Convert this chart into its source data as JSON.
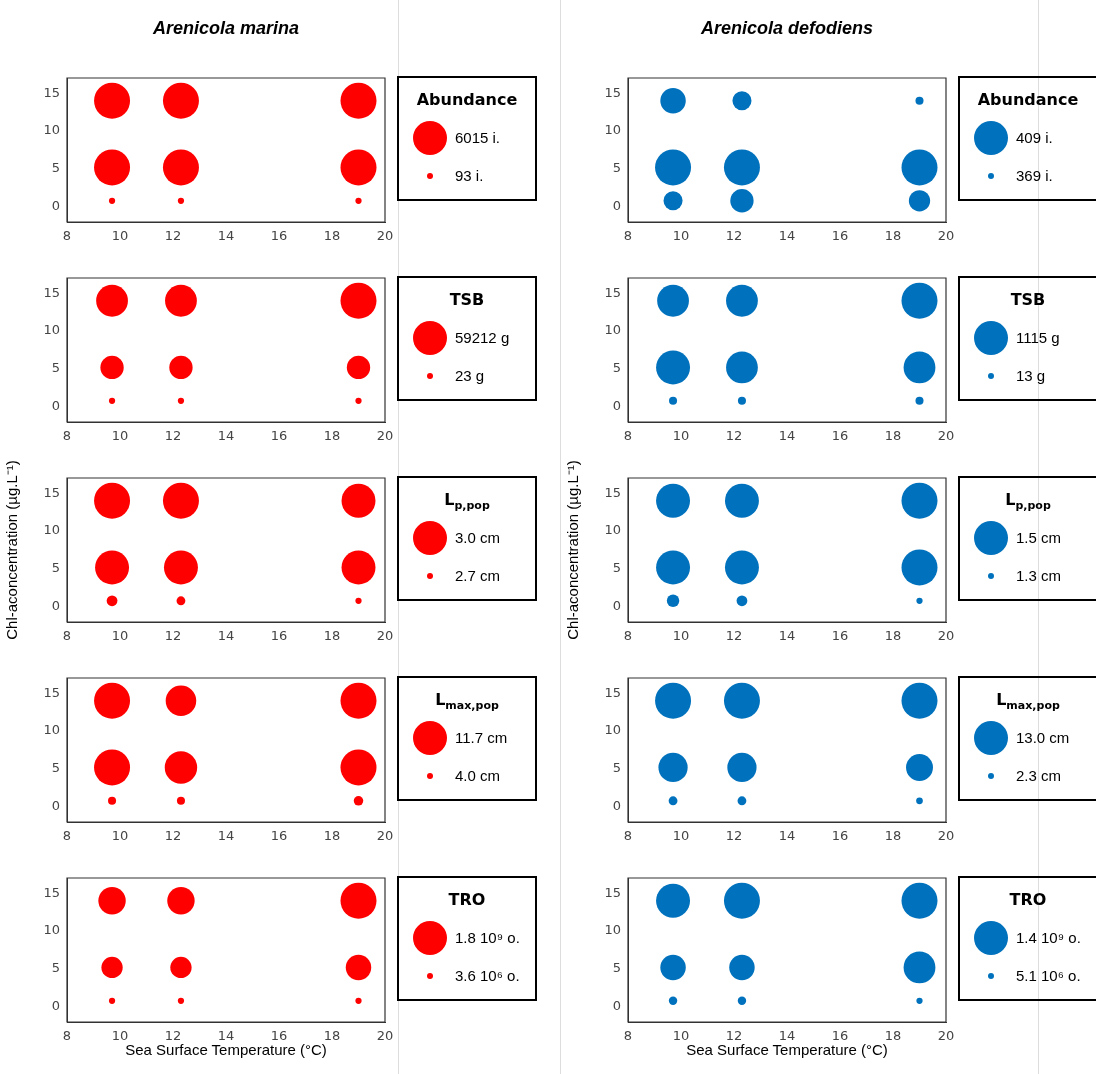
{
  "chart_data": [
    {
      "type": "bubble",
      "title": "Arenicola marina",
      "legend_title": "Abundance",
      "annotations": [
        "6015 i.",
        "93 i."
      ],
      "color": "#ff0000",
      "xlim": [
        8,
        20
      ],
      "ylim": [
        -2,
        17
      ],
      "xticks": [
        8,
        10,
        12,
        14,
        16,
        18,
        20
      ],
      "yticks": [
        0,
        5,
        10,
        15
      ],
      "x": [
        9.7,
        12.3,
        19,
        9.7,
        12.3,
        19,
        9.7,
        12.3,
        19
      ],
      "values": [
        14,
        14,
        14,
        5.2,
        5.2,
        5.2,
        0.8,
        0.8,
        0.8
      ],
      "sizes": [
        1,
        1,
        1,
        1,
        1,
        1,
        0.03,
        0.03,
        0.03
      ]
    },
    {
      "type": "bubble",
      "title": "Arenicola defodiens",
      "legend_title": "Abundance",
      "annotations": [
        "409 i.",
        "369 i."
      ],
      "color": "#0072bd",
      "xlim": [
        8,
        20
      ],
      "ylim": [
        -2,
        17
      ],
      "xticks": [
        8,
        10,
        12,
        14,
        16,
        18,
        20
      ],
      "yticks": [
        0,
        5,
        10,
        15
      ],
      "x": [
        9.7,
        12.3,
        19,
        9.7,
        12.3,
        19,
        9.7,
        12.3,
        19
      ],
      "values": [
        14,
        14,
        14,
        5.2,
        5.2,
        5.2,
        0.8,
        0.8,
        0.8
      ],
      "sizes": [
        0.5,
        0.28,
        0.05,
        1,
        1,
        1,
        0.28,
        0.42,
        0.35
      ]
    },
    {
      "type": "bubble",
      "legend_title": "TSB",
      "annotations": [
        "59212 g",
        "23 g"
      ],
      "color": "#ff0000",
      "xlim": [
        8,
        20
      ],
      "ylim": [
        -2,
        17
      ],
      "xticks": [
        8,
        10,
        12,
        14,
        16,
        18,
        20
      ],
      "yticks": [
        0,
        5,
        10,
        15
      ],
      "x": [
        9.7,
        12.3,
        19,
        9.7,
        12.3,
        19,
        9.7,
        12.3,
        19
      ],
      "values": [
        14,
        14,
        14,
        5.2,
        5.2,
        5.2,
        0.8,
        0.8,
        0.8
      ],
      "sizes": [
        0.78,
        0.78,
        1,
        0.42,
        0.42,
        0.42,
        0.03,
        0.03,
        0.03
      ]
    },
    {
      "type": "bubble",
      "legend_title": "TSB",
      "annotations": [
        "1115 g",
        "13 g"
      ],
      "color": "#0072bd",
      "xlim": [
        8,
        20
      ],
      "ylim": [
        -2,
        17
      ],
      "xticks": [
        8,
        10,
        12,
        14,
        16,
        18,
        20
      ],
      "yticks": [
        0,
        5,
        10,
        15
      ],
      "x": [
        9.7,
        12.3,
        19,
        9.7,
        12.3,
        19,
        9.7,
        12.3,
        19
      ],
      "values": [
        14,
        14,
        14,
        5.2,
        5.2,
        5.2,
        0.8,
        0.8,
        0.8
      ],
      "sizes": [
        0.78,
        0.78,
        1,
        0.89,
        0.78,
        0.78,
        0.05,
        0.05,
        0.05
      ]
    },
    {
      "type": "bubble",
      "ylabel": "Chl-aconcentration (µg.L⁻¹)",
      "legend_title": "L$_{p,pop}$",
      "annotations": [
        "3.0 cm",
        "2.7 cm"
      ],
      "color": "#ff0000",
      "xlim": [
        8,
        20
      ],
      "ylim": [
        -2,
        17
      ],
      "xticks": [
        8,
        10,
        12,
        14,
        16,
        18,
        20
      ],
      "yticks": [
        0,
        5,
        10,
        15
      ],
      "x": [
        9.7,
        12.3,
        19,
        9.7,
        12.3,
        19,
        9.7,
        12.3,
        19
      ],
      "values": [
        14,
        14,
        14,
        5.2,
        5.2,
        5.2,
        0.8,
        0.8,
        0.8
      ],
      "sizes": [
        1,
        1,
        0.89,
        0.89,
        0.89,
        0.89,
        0.09,
        0.06,
        0.03
      ]
    },
    {
      "type": "bubble",
      "ylabel": "Chl-aconcentration (µg.L⁻¹)",
      "legend_title": "L$_{p,pop}$",
      "annotations": [
        "1.5 cm",
        "1.3 cm"
      ],
      "color": "#0072bd",
      "xlim": [
        8,
        20
      ],
      "ylim": [
        -2,
        17
      ],
      "xticks": [
        8,
        10,
        12,
        14,
        16,
        18,
        20
      ],
      "yticks": [
        0,
        5,
        10,
        15
      ],
      "x": [
        9.7,
        12.3,
        19,
        9.7,
        12.3,
        19,
        9.7,
        12.3,
        19
      ],
      "values": [
        14,
        14,
        14,
        5.2,
        5.2,
        5.2,
        0.8,
        0.8,
        0.8
      ],
      "sizes": [
        0.89,
        0.89,
        1,
        0.89,
        0.89,
        1,
        0.12,
        0.09,
        0.03
      ]
    },
    {
      "type": "bubble",
      "legend_title": "L$_{max,pop}$",
      "annotations": [
        "11.7 cm",
        "4.0 cm"
      ],
      "color": "#ff0000",
      "xlim": [
        8,
        20
      ],
      "ylim": [
        -2,
        17
      ],
      "xticks": [
        8,
        10,
        12,
        14,
        16,
        18,
        20
      ],
      "yticks": [
        0,
        5,
        10,
        15
      ],
      "x": [
        9.7,
        12.3,
        19,
        9.7,
        12.3,
        19,
        9.7,
        12.3,
        19
      ],
      "values": [
        14,
        14,
        14,
        5.2,
        5.2,
        5.2,
        0.8,
        0.8,
        0.8
      ],
      "sizes": [
        1,
        0.72,
        1,
        1,
        0.81,
        1,
        0.05,
        0.05,
        0.07
      ]
    },
    {
      "type": "bubble",
      "legend_title": "L$_{max,pop}$",
      "annotations": [
        "13.0 cm",
        "2.3 cm"
      ],
      "color": "#0072bd",
      "xlim": [
        8,
        20
      ],
      "ylim": [
        -2,
        17
      ],
      "xticks": [
        8,
        10,
        12,
        14,
        16,
        18,
        20
      ],
      "yticks": [
        0,
        5,
        10,
        15
      ],
      "x": [
        9.7,
        12.3,
        19,
        9.7,
        12.3,
        19,
        9.7,
        12.3,
        19
      ],
      "values": [
        14,
        14,
        14,
        5.2,
        5.2,
        5.2,
        0.8,
        0.8,
        0.8
      ],
      "sizes": [
        1,
        1,
        1,
        0.66,
        0.66,
        0.56,
        0.06,
        0.06,
        0.035
      ]
    },
    {
      "type": "bubble",
      "xlabel": "Sea Surface Temperature (°C)",
      "legend_title": "TRO",
      "annotations": [
        "1.8 10⁹ o.",
        "3.6 10⁶ o."
      ],
      "color": "#ff0000",
      "xlim": [
        8,
        20
      ],
      "ylim": [
        -2,
        17
      ],
      "xticks": [
        8,
        10,
        12,
        14,
        16,
        18,
        20
      ],
      "yticks": [
        0,
        5,
        10,
        15
      ],
      "x": [
        9.7,
        12.3,
        19,
        9.7,
        12.3,
        19,
        9.7,
        12.3,
        19
      ],
      "values": [
        14,
        14,
        14,
        5.2,
        5.2,
        5.2,
        0.8,
        0.8,
        0.8
      ],
      "sizes": [
        0.58,
        0.58,
        1,
        0.35,
        0.35,
        0.5,
        0.03,
        0.03,
        0.03
      ]
    },
    {
      "type": "bubble",
      "xlabel": "Sea Surface Temperature (°C)",
      "legend_title": "TRO",
      "annotations": [
        "1.4 10⁹ o.",
        "5.1 10⁶ o."
      ],
      "color": "#0072bd",
      "xlim": [
        8,
        20
      ],
      "ylim": [
        -2,
        17
      ],
      "xticks": [
        8,
        10,
        12,
        14,
        16,
        18,
        20
      ],
      "yticks": [
        0,
        5,
        10,
        15
      ],
      "x": [
        9.7,
        12.3,
        19,
        9.7,
        12.3,
        19,
        9.7,
        12.3,
        19
      ],
      "values": [
        14,
        14,
        14,
        5.2,
        5.2,
        5.2,
        0.8,
        0.8,
        0.8
      ],
      "sizes": [
        0.89,
        1,
        1,
        0.5,
        0.5,
        0.78,
        0.055,
        0.055,
        0.03
      ]
    }
  ]
}
